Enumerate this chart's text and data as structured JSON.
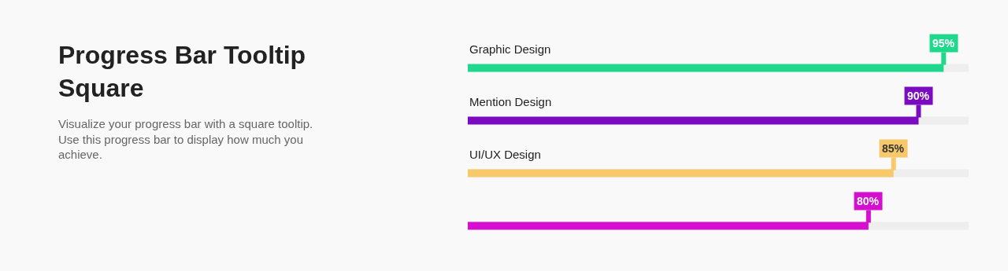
{
  "chart_data": {
    "type": "bar",
    "orientation": "horizontal",
    "title": "Progress Bar Tooltip Square",
    "subtitle": "Visualize your progress bar with a square tooltip. Use this progress bar to display how much you achieve.",
    "categories": [
      "Graphic Design",
      "Mention Design",
      "UI/UX Design",
      null
    ],
    "values": [
      95,
      90,
      85,
      80
    ],
    "value_labels": [
      "95%",
      "90%",
      "85%",
      "80%"
    ],
    "colors": [
      "#1ed98c",
      "#7a0bc0",
      "#f8c96a",
      "#d40fd0"
    ],
    "xlim": [
      0,
      100
    ],
    "tick_labels": "y",
    "grid": false,
    "legend": false
  }
}
